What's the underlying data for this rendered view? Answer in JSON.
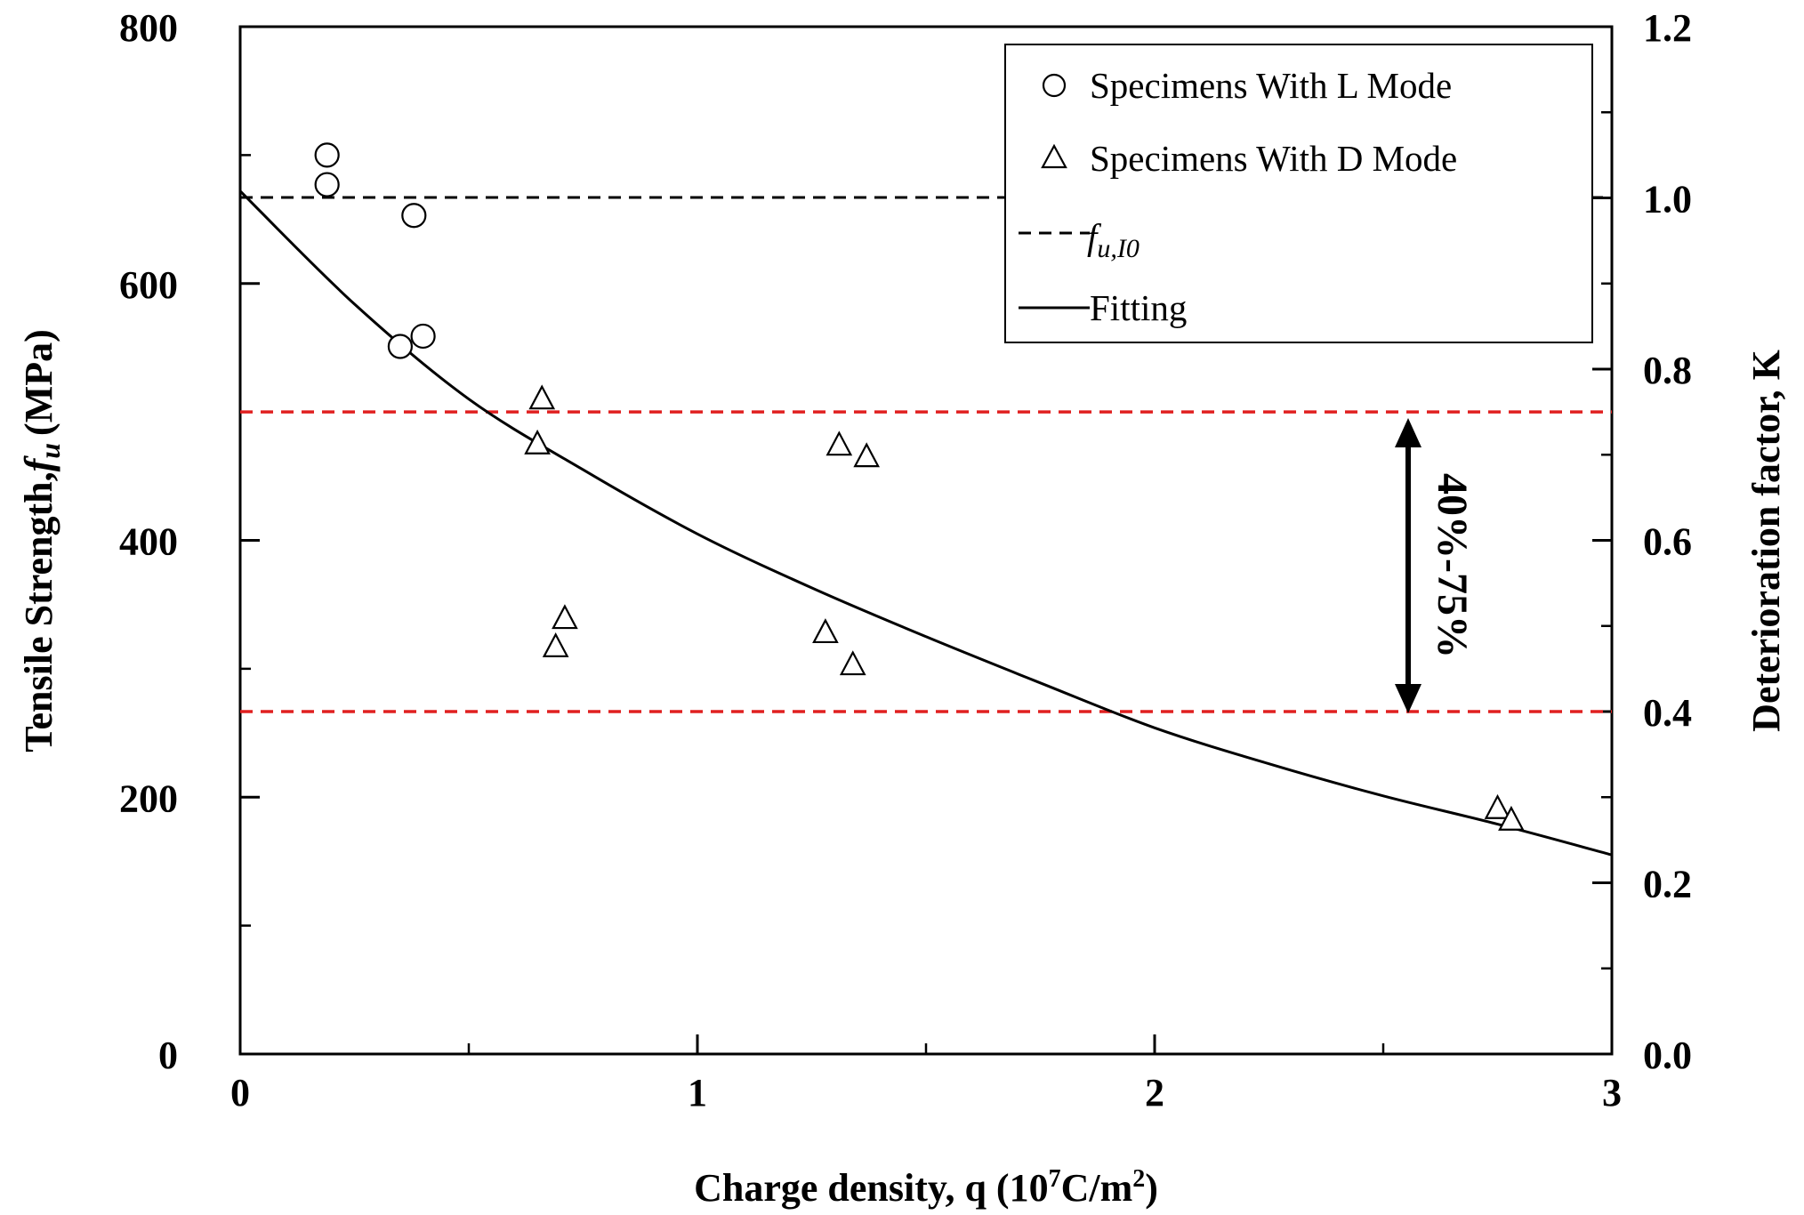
{
  "chart_data": {
    "type": "scatter",
    "xlabel_main": "Charge density, q (10",
    "xlabel_sup1": "7",
    "xlabel_mid": "C/m",
    "xlabel_sup2": "2",
    "xlabel_end": ")",
    "ylabel_main": "Tensile Strength,",
    "ylabel_var": "f",
    "ylabel_sub": "u",
    "ylabel_unit": "(MPa)",
    "y2label": "Deterioration factor, K",
    "xlim": [
      0,
      3
    ],
    "ylim": [
      0,
      800
    ],
    "y2lim": [
      0,
      1.2
    ],
    "x_ticks": [
      "0",
      "1",
      "2",
      "3"
    ],
    "y_ticks": [
      "0",
      "200",
      "400",
      "600",
      "800"
    ],
    "y2_ticks": [
      "0.0",
      "0.2",
      "0.4",
      "0.6",
      "0.8",
      "1.0",
      "1.2"
    ],
    "legend": {
      "position": "top-right",
      "l_mode": "Specimens With L Mode",
      "d_mode": "Specimens With D Mode",
      "ref_var": "f",
      "ref_sub": "u,I0",
      "fitting": "Fitting"
    },
    "series": [
      {
        "name": "Specimens With L Mode",
        "marker": "circle",
        "points": [
          [
            0.19,
            700
          ],
          [
            0.19,
            677
          ],
          [
            0.38,
            653
          ],
          [
            0.35,
            551
          ],
          [
            0.4,
            559
          ]
        ]
      },
      {
        "name": "Specimens With D Mode",
        "marker": "triangle",
        "points": [
          [
            0.66,
            510
          ],
          [
            0.65,
            475
          ],
          [
            0.71,
            339
          ],
          [
            0.69,
            317
          ],
          [
            1.31,
            474
          ],
          [
            1.37,
            465
          ],
          [
            1.28,
            328
          ],
          [
            1.34,
            303
          ],
          [
            2.75,
            191
          ],
          [
            2.78,
            182
          ]
        ]
      }
    ],
    "reference_line": {
      "name": "f_u,I0",
      "value": 667,
      "color": "#000000"
    },
    "range_lines": {
      "upper_k": 0.75,
      "lower_k": 0.4,
      "color": "#e02020"
    },
    "fitting_curve": {
      "x": [
        0,
        0.25,
        0.5,
        0.75,
        1.0,
        1.25,
        1.5,
        1.75,
        2.0,
        2.25,
        2.5,
        2.75,
        3.0
      ],
      "y": [
        672,
        584,
        510,
        455,
        405,
        363,
        325,
        289,
        254,
        226,
        201,
        179,
        155
      ]
    },
    "annotation": "40%-75%"
  }
}
